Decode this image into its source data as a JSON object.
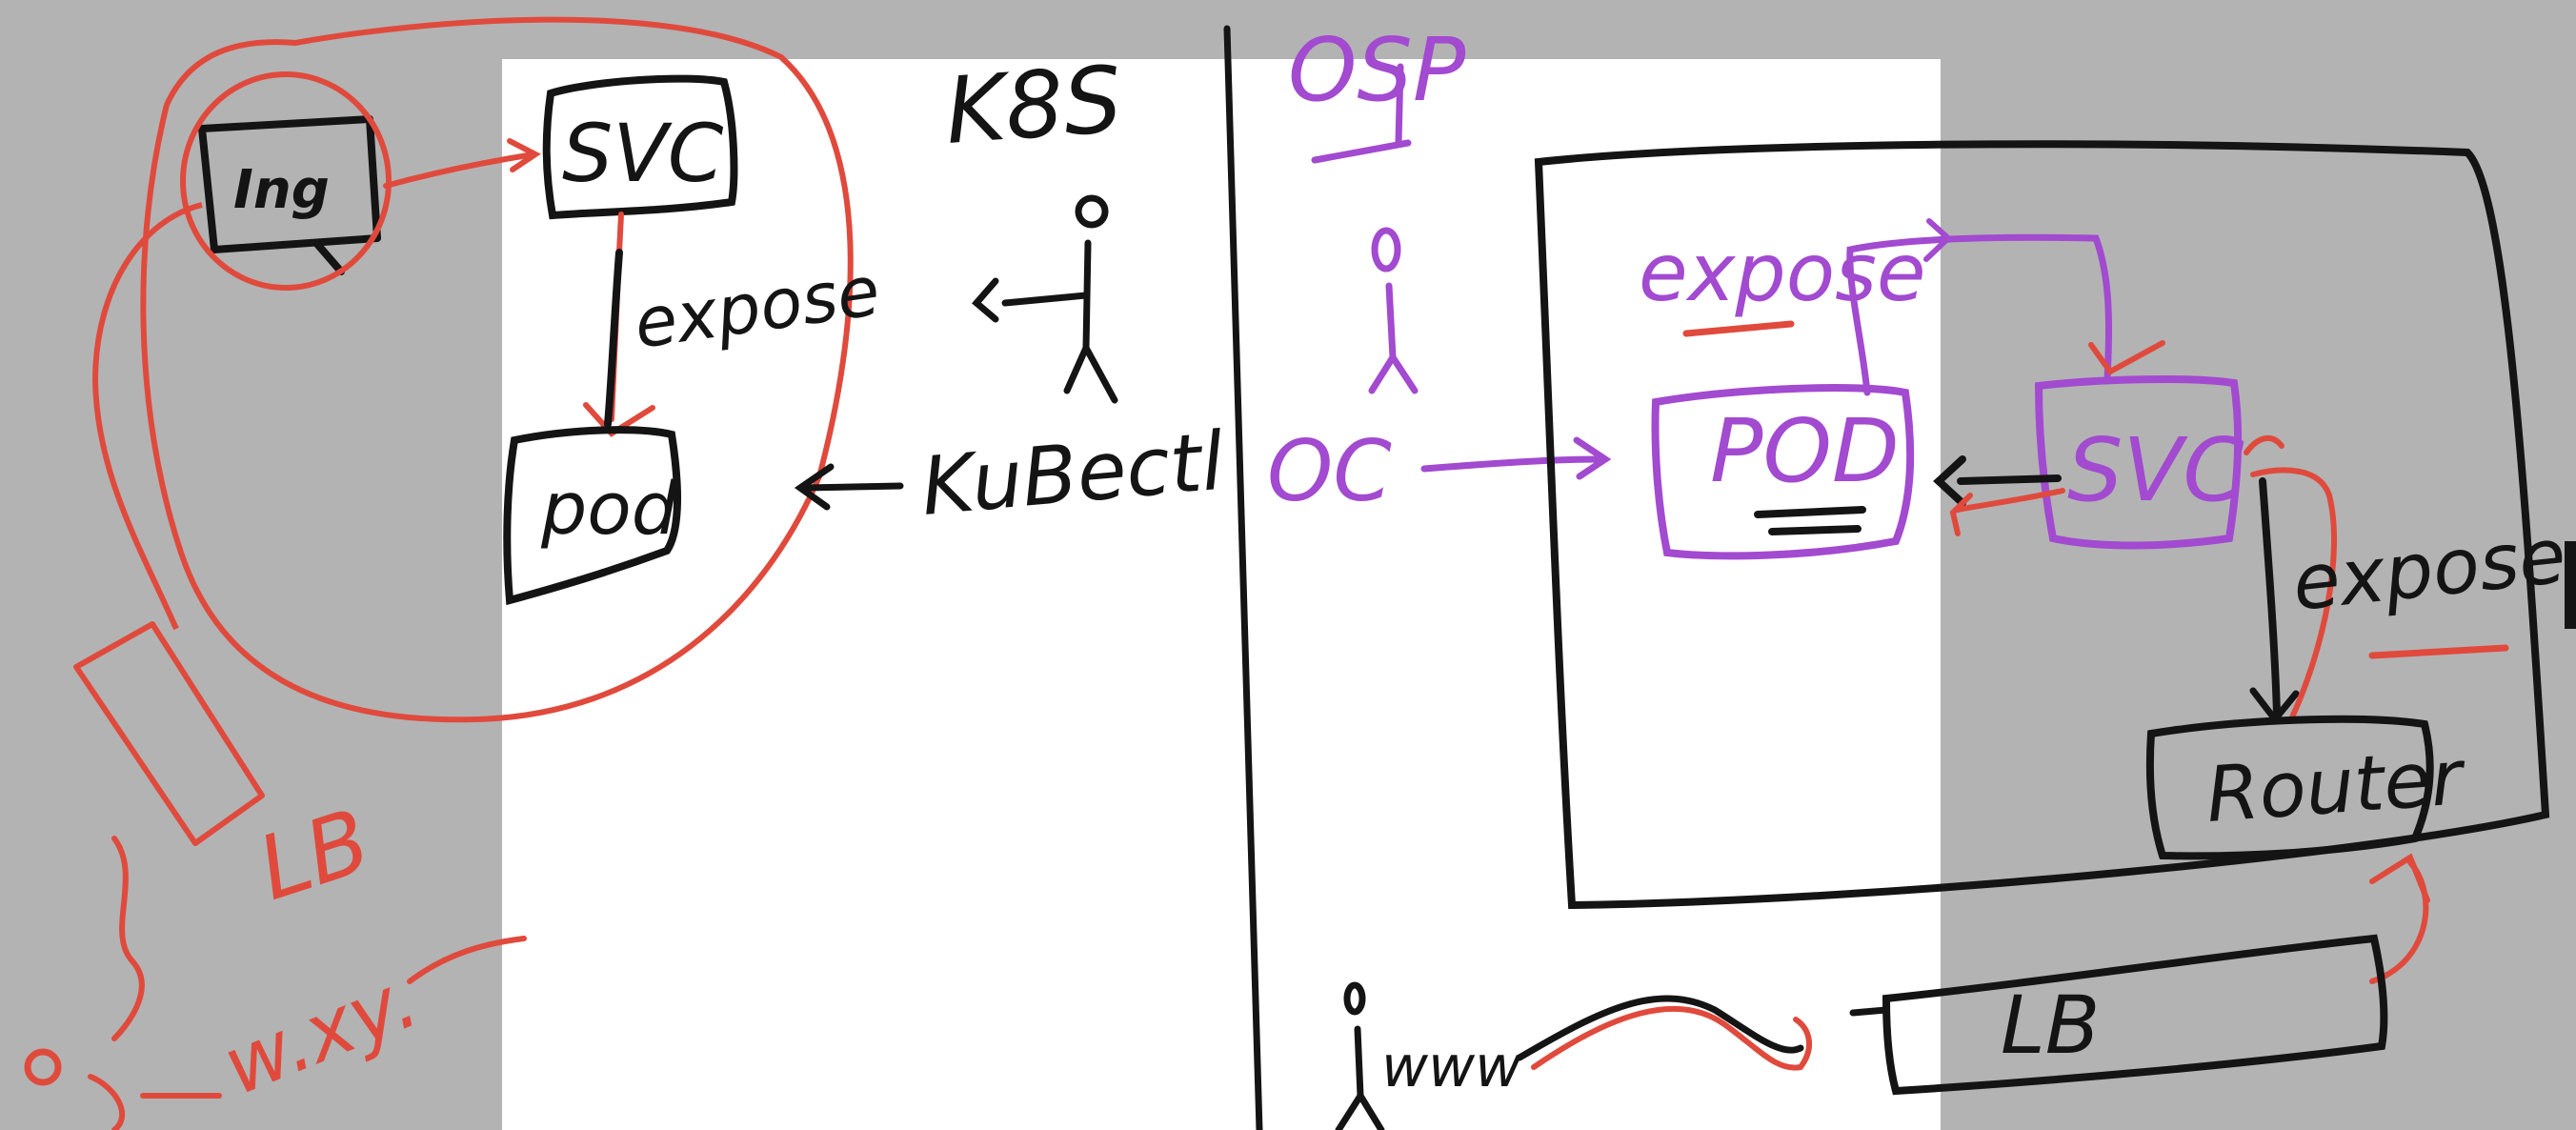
{
  "colors": {
    "background": "#b3b3b3",
    "page": "#ffffff",
    "ink_black": "#141414",
    "ink_red": "#e04a3c",
    "ink_purple": "#a24ad0"
  },
  "labels": {
    "k8s": "K8S",
    "osp": "OSP",
    "oc": "OC",
    "kubectl": "KuBectl",
    "ing": "Ing",
    "k8s_svc": "SVC",
    "k8s_expose": "expose",
    "k8s_pod": "pod",
    "osp_expose": "expose",
    "osp_pod": "POD",
    "osp_svc": "SVC",
    "osp_expose_right": "expose",
    "router": "Router",
    "lb_left": "LB",
    "lb_right": "LB",
    "www": "w.xy.",
    "url_squiggle": "www"
  }
}
